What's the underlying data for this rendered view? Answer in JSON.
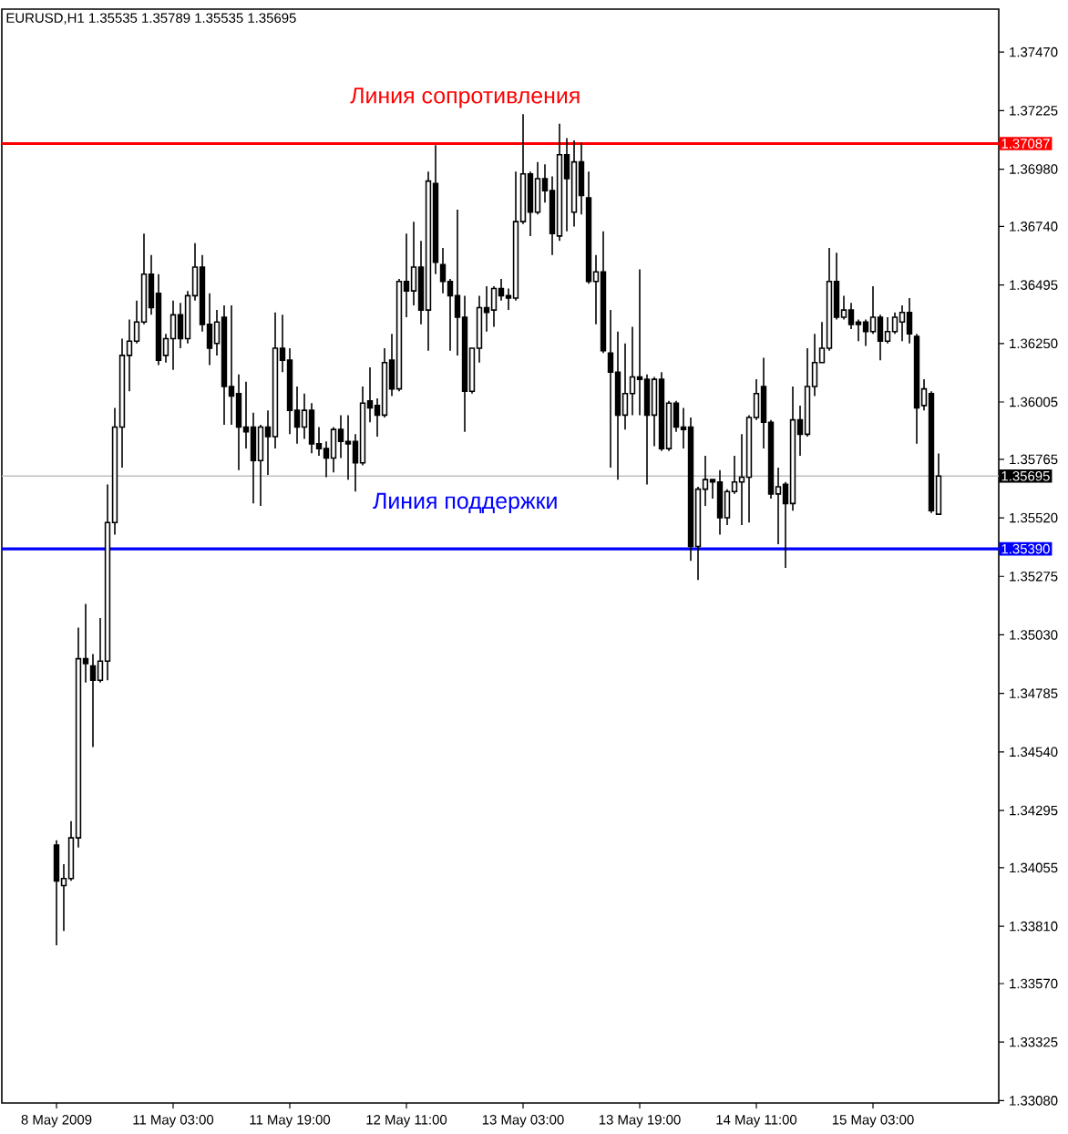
{
  "chart_data": {
    "type": "candlestick",
    "title": "EURUSD,H1 1.35535 1.35789 1.35535 1.35695",
    "categories": [
      "8 May 2009",
      null,
      null,
      null,
      null,
      null,
      null,
      null,
      null,
      null,
      null,
      null,
      null,
      null,
      null,
      null,
      "11 May 03:00",
      null,
      null,
      null,
      null,
      null,
      null,
      null,
      null,
      null,
      null,
      null,
      null,
      null,
      null,
      null,
      "11 May 19:00",
      null,
      null,
      null,
      null,
      null,
      null,
      null,
      null,
      null,
      null,
      null,
      null,
      null,
      null,
      null,
      "12 May 11:00",
      null,
      null,
      null,
      null,
      null,
      null,
      null,
      null,
      null,
      null,
      null,
      null,
      null,
      null,
      null,
      "13 May 03:00",
      null,
      null,
      null,
      null,
      null,
      null,
      null,
      null,
      null,
      null,
      null,
      null,
      null,
      null,
      null,
      "13 May 19:00",
      null,
      null,
      null,
      null,
      null,
      null,
      null,
      null,
      null,
      null,
      null,
      null,
      null,
      null,
      null,
      "14 May 11:00",
      null,
      null,
      null,
      null,
      null,
      null,
      null,
      null,
      null,
      null,
      null,
      null,
      null,
      null,
      null,
      "15 May 03:00",
      null,
      null,
      null,
      null,
      null,
      null,
      null,
      null,
      null
    ],
    "ohlc": [
      [
        1.3415,
        1.3417,
        1.3373,
        1.34
      ],
      [
        1.3398,
        1.3407,
        1.3379,
        1.3401
      ],
      [
        1.3401,
        1.3425,
        1.34,
        1.3418
      ],
      [
        1.3418,
        1.3506,
        1.3414,
        1.3493
      ],
      [
        1.3493,
        1.3516,
        1.3483,
        1.3491
      ],
      [
        1.349,
        1.3495,
        1.3456,
        1.3484
      ],
      [
        1.3484,
        1.351,
        1.3483,
        1.3492
      ],
      [
        1.3492,
        1.3566,
        1.3484,
        1.355
      ],
      [
        1.355,
        1.3598,
        1.3545,
        1.359
      ],
      [
        1.359,
        1.3627,
        1.3573,
        1.362
      ],
      [
        1.362,
        1.3635,
        1.3605,
        1.3626
      ],
      [
        1.3626,
        1.3643,
        1.3625,
        1.3634
      ],
      [
        1.3634,
        1.3671,
        1.3633,
        1.3654
      ],
      [
        1.3654,
        1.3662,
        1.3637,
        1.364
      ],
      [
        1.3646,
        1.3654,
        1.3616,
        1.3618
      ],
      [
        1.362,
        1.3629,
        1.3617,
        1.3627
      ],
      [
        1.3627,
        1.3643,
        1.3614,
        1.3637
      ],
      [
        1.3637,
        1.3642,
        1.3623,
        1.3627
      ],
      [
        1.3627,
        1.3647,
        1.3625,
        1.3645
      ],
      [
        1.3645,
        1.3667,
        1.3643,
        1.3657
      ],
      [
        1.3657,
        1.3662,
        1.363,
        1.3633
      ],
      [
        1.3633,
        1.3646,
        1.3616,
        1.3623
      ],
      [
        1.3625,
        1.3639,
        1.362,
        1.3634
      ],
      [
        1.3636,
        1.3641,
        1.3591,
        1.3607
      ],
      [
        1.3607,
        1.3641,
        1.3591,
        1.3603
      ],
      [
        1.3604,
        1.3612,
        1.3572,
        1.359
      ],
      [
        1.359,
        1.3609,
        1.3581,
        1.3588
      ],
      [
        1.359,
        1.3596,
        1.3558,
        1.3576
      ],
      [
        1.3576,
        1.3591,
        1.3557,
        1.359
      ],
      [
        1.359,
        1.3597,
        1.357,
        1.3586
      ],
      [
        1.3586,
        1.3638,
        1.3581,
        1.3623
      ],
      [
        1.3623,
        1.3637,
        1.3613,
        1.3618
      ],
      [
        1.3618,
        1.3623,
        1.3587,
        1.3597
      ],
      [
        1.3597,
        1.3607,
        1.3583,
        1.359
      ],
      [
        1.359,
        1.3604,
        1.3585,
        1.3597
      ],
      [
        1.3597,
        1.36,
        1.3579,
        1.3583
      ],
      [
        1.3583,
        1.359,
        1.3578,
        1.3581
      ],
      [
        1.3581,
        1.3584,
        1.3569,
        1.3577
      ],
      [
        1.3577,
        1.359,
        1.3571,
        1.3589
      ],
      [
        1.3589,
        1.3595,
        1.3577,
        1.3584
      ],
      [
        1.3584,
        1.3595,
        1.3568,
        1.3583
      ],
      [
        1.3584,
        1.3587,
        1.3563,
        1.3575
      ],
      [
        1.3575,
        1.3607,
        1.3574,
        1.36
      ],
      [
        1.3601,
        1.3615,
        1.3592,
        1.3598
      ],
      [
        1.3599,
        1.3602,
        1.3586,
        1.3595
      ],
      [
        1.3595,
        1.3623,
        1.3594,
        1.3617
      ],
      [
        1.3618,
        1.3629,
        1.3603,
        1.3606
      ],
      [
        1.3606,
        1.3652,
        1.3605,
        1.3651
      ],
      [
        1.3651,
        1.3671,
        1.3636,
        1.3647
      ],
      [
        1.3647,
        1.3676,
        1.3641,
        1.3657
      ],
      [
        1.3657,
        1.3668,
        1.3633,
        1.3639
      ],
      [
        1.3639,
        1.3697,
        1.3622,
        1.3693
      ],
      [
        1.3692,
        1.3708,
        1.3654,
        1.3659
      ],
      [
        1.3658,
        1.3665,
        1.3646,
        1.3651
      ],
      [
        1.3651,
        1.3652,
        1.3622,
        1.3645
      ],
      [
        1.3645,
        1.3681,
        1.362,
        1.3636
      ],
      [
        1.3636,
        1.3645,
        1.3588,
        1.3605
      ],
      [
        1.3605,
        1.3623,
        1.3604,
        1.3623
      ],
      [
        1.3623,
        1.3645,
        1.3617,
        1.364
      ],
      [
        1.364,
        1.3649,
        1.363,
        1.3638
      ],
      [
        1.3639,
        1.3649,
        1.3632,
        1.3648
      ],
      [
        1.3648,
        1.3652,
        1.3643,
        1.3645
      ],
      [
        1.3645,
        1.3648,
        1.3639,
        1.3644
      ],
      [
        1.3644,
        1.3697,
        1.3643,
        1.3676
      ],
      [
        1.3676,
        1.3721,
        1.3675,
        1.3696
      ],
      [
        1.3696,
        1.3697,
        1.367,
        1.368
      ],
      [
        1.368,
        1.3701,
        1.3679,
        1.3694
      ],
      [
        1.3694,
        1.37,
        1.3684,
        1.3689
      ],
      [
        1.3689,
        1.3695,
        1.3662,
        1.3671
      ],
      [
        1.367,
        1.3717,
        1.3668,
        1.3704
      ],
      [
        1.3704,
        1.3711,
        1.3672,
        1.3694
      ],
      [
        1.368,
        1.371,
        1.3674,
        1.3701
      ],
      [
        1.3701,
        1.3709,
        1.3679,
        1.3687
      ],
      [
        1.3686,
        1.3697,
        1.365,
        1.3651
      ],
      [
        1.3651,
        1.3662,
        1.3633,
        1.3655
      ],
      [
        1.3655,
        1.3672,
        1.3621,
        1.3622
      ],
      [
        1.3621,
        1.3639,
        1.3573,
        1.3613
      ],
      [
        1.3613,
        1.363,
        1.3568,
        1.3595
      ],
      [
        1.3595,
        1.3625,
        1.3589,
        1.3604
      ],
      [
        1.3604,
        1.3632,
        1.3595,
        1.3611
      ],
      [
        1.3611,
        1.3656,
        1.3595,
        1.361
      ],
      [
        1.361,
        1.3612,
        1.3566,
        1.3595
      ],
      [
        1.3595,
        1.3611,
        1.3582,
        1.361
      ],
      [
        1.361,
        1.3613,
        1.358,
        1.3581
      ],
      [
        1.3581,
        1.3601,
        1.358,
        1.36
      ],
      [
        1.36,
        1.3601,
        1.3588,
        1.359
      ],
      [
        1.359,
        1.3598,
        1.3581,
        1.3589
      ],
      [
        1.359,
        1.3594,
        1.3534,
        1.354
      ],
      [
        1.354,
        1.3565,
        1.3526,
        1.3564
      ],
      [
        1.3564,
        1.3578,
        1.3557,
        1.3568
      ],
      [
        1.3568,
        1.3568,
        1.356,
        1.3567
      ],
      [
        1.3567,
        1.3572,
        1.3545,
        1.3552
      ],
      [
        1.3552,
        1.3564,
        1.3549,
        1.3563
      ],
      [
        1.3563,
        1.3578,
        1.3562,
        1.3567
      ],
      [
        1.3567,
        1.3587,
        1.3549,
        1.3569
      ],
      [
        1.3569,
        1.3595,
        1.355,
        1.3594
      ],
      [
        1.3594,
        1.361,
        1.3593,
        1.3604
      ],
      [
        1.3607,
        1.3619,
        1.3581,
        1.3592
      ],
      [
        1.3592,
        1.3593,
        1.356,
        1.3562
      ],
      [
        1.3562,
        1.3573,
        1.3541,
        1.3565
      ],
      [
        1.3566,
        1.3567,
        1.3531,
        1.3558
      ],
      [
        1.3558,
        1.3607,
        1.3555,
        1.3593
      ],
      [
        1.3593,
        1.3599,
        1.3578,
        1.3587
      ],
      [
        1.3587,
        1.3623,
        1.3586,
        1.3607
      ],
      [
        1.3607,
        1.3629,
        1.3603,
        1.3617
      ],
      [
        1.3617,
        1.3634,
        1.3617,
        1.3623
      ],
      [
        1.3623,
        1.3665,
        1.3622,
        1.3651
      ],
      [
        1.3651,
        1.3663,
        1.3635,
        1.3636
      ],
      [
        1.3636,
        1.3645,
        1.3635,
        1.3639
      ],
      [
        1.3639,
        1.3642,
        1.3631,
        1.3633
      ],
      [
        1.3634,
        1.3635,
        1.3626,
        1.3633
      ],
      [
        1.3634,
        1.3635,
        1.3624,
        1.363
      ],
      [
        1.363,
        1.3649,
        1.3629,
        1.3636
      ],
      [
        1.3636,
        1.3637,
        1.3618,
        1.3626
      ],
      [
        1.3626,
        1.3636,
        1.3625,
        1.363
      ],
      [
        1.363,
        1.3638,
        1.3629,
        1.3636
      ],
      [
        1.3634,
        1.3641,
        1.3626,
        1.3638
      ],
      [
        1.3638,
        1.3644,
        1.3625,
        1.3629
      ],
      [
        1.3628,
        1.3629,
        1.3583,
        1.3598
      ],
      [
        1.3599,
        1.361,
        1.3597,
        1.3606
      ],
      [
        1.3604,
        1.3605,
        1.3554,
        1.3555
      ],
      [
        1.35535,
        1.35789,
        1.35535,
        1.35695
      ]
    ],
    "ylim": [
      1.3307,
      1.3765
    ],
    "yticks": [
      {
        "value": 1.3747,
        "label": "1.37470"
      },
      1.37225,
      {
        "value": 1.3698,
        "label": "1.36980"
      },
      {
        "value": 1.3674,
        "label": "1.36740"
      },
      1.36495,
      {
        "value": 1.3625,
        "label": "1.36250"
      },
      1.36005,
      1.35765,
      {
        "value": 1.3552,
        "label": "1.35520"
      },
      1.35275,
      {
        "value": 1.3503,
        "label": "1.35030"
      },
      1.34785,
      {
        "value": 1.3454,
        "label": "1.34540"
      },
      1.34295,
      1.34055,
      {
        "value": 1.3381,
        "label": "1.33810"
      },
      {
        "value": 1.3357,
        "label": "1.33570"
      },
      1.33325,
      {
        "value": 1.3308,
        "label": "1.33080"
      }
    ],
    "ref_lines": [
      {
        "axis": "y",
        "value": 1.37087,
        "label": "1.37087",
        "color": "#ff0000"
      },
      {
        "axis": "y",
        "value": 1.3539,
        "label": "1.35390",
        "color": "#0000ff"
      },
      {
        "axis": "y",
        "value": 1.35695,
        "label": "1.35695",
        "color": "#c0c0c0"
      }
    ],
    "annotations": [
      {
        "text": "Линия сопротивления",
        "y": 1.37087
      },
      {
        "text": "Линия поддержки",
        "y": 1.3539
      }
    ]
  }
}
